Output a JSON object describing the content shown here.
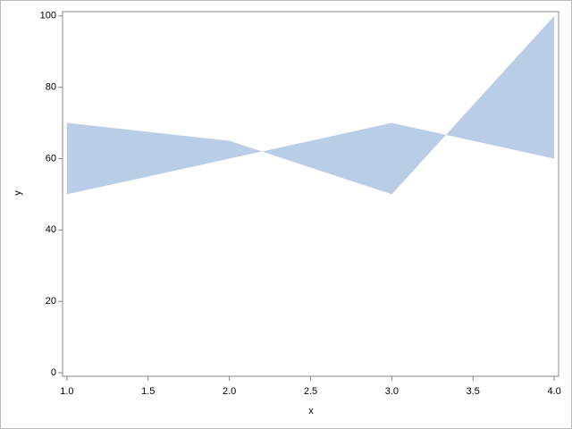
{
  "chart_data": {
    "type": "band",
    "x_label": "x",
    "y_label": "y",
    "x": [
      1,
      2,
      3,
      4
    ],
    "series": [
      {
        "color": "#b9cde7",
        "values": [
          70,
          65,
          50,
          100
        ]
      },
      {
        "color": "#b9cde7",
        "values": [
          50,
          60,
          70,
          60
        ]
      }
    ],
    "xlim": [
      0.973,
      4.027
    ],
    "xticks": [
      {
        "value": 1,
        "label": "1.0"
      },
      {
        "value": 1.5,
        "label": "1.5"
      },
      {
        "value": 2,
        "label": "2.0"
      },
      {
        "value": 2.5,
        "label": "2.5"
      },
      {
        "value": 3,
        "label": "3.0"
      },
      {
        "value": 3.5,
        "label": "3.5"
      },
      {
        "value": 4,
        "label": "4.0"
      }
    ],
    "ylim": [
      -1,
      101.2
    ],
    "yticks": [
      0,
      20,
      40,
      60,
      80,
      100
    ],
    "grid": false
  }
}
